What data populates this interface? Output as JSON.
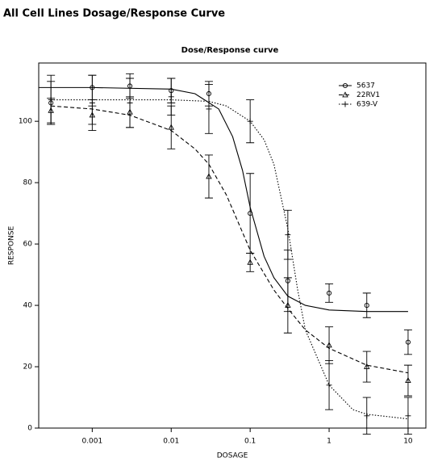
{
  "page_title": "All Cell Lines Dosage/Response Curve",
  "chart_data": {
    "type": "dose-response",
    "title": "Dose/Response curve",
    "xlabel": "DOSAGE",
    "ylabel": "RESPONSE",
    "xscale": "log",
    "xlim": [
      0.00021,
      16.8
    ],
    "ylim": [
      0,
      119
    ],
    "xticks": [
      0.001,
      0.01,
      0.1,
      1,
      10
    ],
    "yticks": [
      0,
      20,
      40,
      60,
      80,
      100
    ],
    "legend": "upper right",
    "x": [
      0.0003,
      0.001,
      0.003,
      0.01,
      0.03,
      0.1,
      0.3,
      1,
      3,
      10
    ],
    "series": [
      {
        "name": "5637",
        "color": "#000000",
        "marker": "circle",
        "line": "solid",
        "values": [
          106,
          111,
          111.5,
          110,
          109,
          70,
          48,
          44,
          40,
          28
        ],
        "errors": [
          7,
          4,
          4,
          4,
          4,
          13,
          10,
          3,
          4,
          4
        ],
        "curve": {
          "x": [
            0.00021,
            0.001,
            0.01,
            0.02,
            0.04,
            0.06,
            0.08,
            0.1,
            0.15,
            0.2,
            0.3,
            0.5,
            1,
            3,
            10
          ],
          "values": [
            111,
            111,
            110.5,
            109,
            104,
            95,
            84,
            72,
            56,
            49,
            43,
            40,
            38.5,
            38,
            38
          ]
        }
      },
      {
        "name": "22RV1",
        "color": "#000000",
        "marker": "triangle",
        "line": "dashed",
        "values": [
          103.5,
          102,
          103,
          98,
          82,
          54,
          40,
          27,
          20,
          15.5
        ],
        "errors": [
          4,
          3,
          5,
          7,
          7,
          3,
          9,
          6,
          5,
          5
        ],
        "curve": {
          "x": [
            0.0003,
            0.001,
            0.003,
            0.01,
            0.02,
            0.03,
            0.05,
            0.1,
            0.2,
            0.3,
            0.5,
            1,
            3,
            10
          ],
          "values": [
            105,
            104,
            102,
            97,
            91,
            86,
            76,
            58,
            45,
            39,
            32,
            26,
            20.5,
            18
          ]
        }
      },
      {
        "name": "639-V",
        "color": "#000000",
        "marker": "plus",
        "line": "dotted",
        "values": [
          107,
          106,
          106,
          108,
          104,
          100,
          63,
          14,
          4,
          4
        ],
        "errors": [
          8,
          9,
          8,
          6,
          8,
          7,
          8,
          8,
          6,
          6
        ],
        "curve": {
          "x": [
            0.0003,
            0.01,
            0.03,
            0.05,
            0.1,
            0.15,
            0.2,
            0.3,
            0.4,
            0.5,
            1,
            2,
            3,
            10
          ],
          "values": [
            107,
            107,
            106.5,
            105,
            100,
            94,
            86,
            65,
            45,
            32,
            14,
            6,
            4.5,
            3
          ]
        }
      }
    ]
  }
}
